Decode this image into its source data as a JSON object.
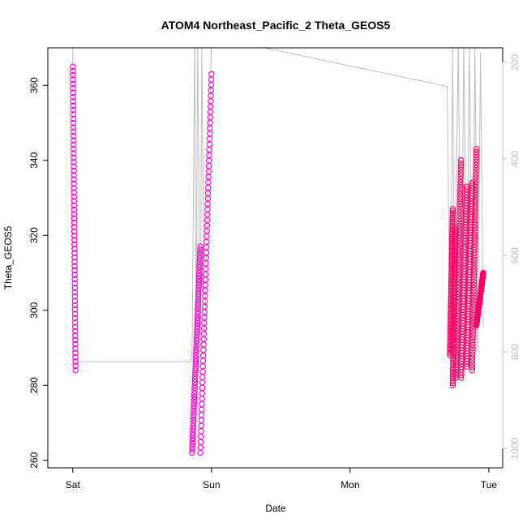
{
  "chart_data": {
    "type": "scatter",
    "title": "ATOM4 Northeast_Pacific_2 Theta_GEOS5",
    "xlabel": "Date",
    "ylabel": "Theta_GEOS5",
    "x_ticks": [
      "Sat",
      "Sun",
      "Mon",
      "Tue"
    ],
    "x_range_days": [
      -0.18,
      3.1
    ],
    "y_ticks": [
      260,
      280,
      300,
      320,
      340,
      360
    ],
    "ylim": [
      258,
      370
    ],
    "y2_ticks": [
      200,
      400,
      600,
      800,
      1000
    ],
    "y2_lim": [
      1040,
      170
    ],
    "y2_reversed": true,
    "colors": {
      "axis": "#000000",
      "secondary_axis": "#bebebe",
      "pressure_line": "#bebebe",
      "series_early": "#ff00cc",
      "series_late": "#ff0066"
    },
    "series": [
      {
        "segments": [
          {
            "x": [
              0.0,
              0.02
            ],
            "y": [
              365,
              284
            ]
          },
          {
            "x": [
              0.86,
              0.92
            ],
            "y": [
              262,
              317
            ]
          },
          {
            "x": [
              0.92,
              1.0
            ],
            "y": [
              262,
              363
            ]
          }
        ],
        "color": "#ff00cc"
      },
      {
        "segments": [
          {
            "x": [
              2.72,
              2.74
            ],
            "y": [
              288,
              327
            ]
          },
          {
            "x": [
              2.74,
              2.76
            ],
            "y": [
              280,
              322
            ]
          },
          {
            "x": [
              2.76,
              2.8
            ],
            "y": [
              282,
              340
            ]
          },
          {
            "x": [
              2.8,
              2.84
            ],
            "y": [
              282,
              333
            ]
          },
          {
            "x": [
              2.84,
              2.88
            ],
            "y": [
              285,
              334
            ]
          },
          {
            "x": [
              2.88,
              2.91
            ],
            "y": [
              284,
              343
            ]
          },
          {
            "x": [
              2.91,
              2.96
            ],
            "y": [
              296,
              310
            ]
          }
        ],
        "color": "#ff0066"
      }
    ],
    "pressure": {
      "x": [
        0.0,
        0.0,
        0.03,
        0.85,
        0.86,
        0.88,
        0.89,
        0.9,
        0.92,
        0.93,
        0.95,
        1.0,
        1.3,
        2.7,
        2.72,
        2.74,
        2.75,
        2.78,
        2.8,
        2.82,
        2.84,
        2.86,
        2.88,
        2.9,
        2.92,
        2.94,
        2.96
      ],
      "y": [
        170,
        820,
        820,
        820,
        800,
        150,
        810,
        150,
        800,
        160,
        780,
        150,
        165,
        250,
        790,
        170,
        780,
        160,
        770,
        150,
        760,
        160,
        780,
        170,
        800,
        180,
        750
      ]
    }
  }
}
